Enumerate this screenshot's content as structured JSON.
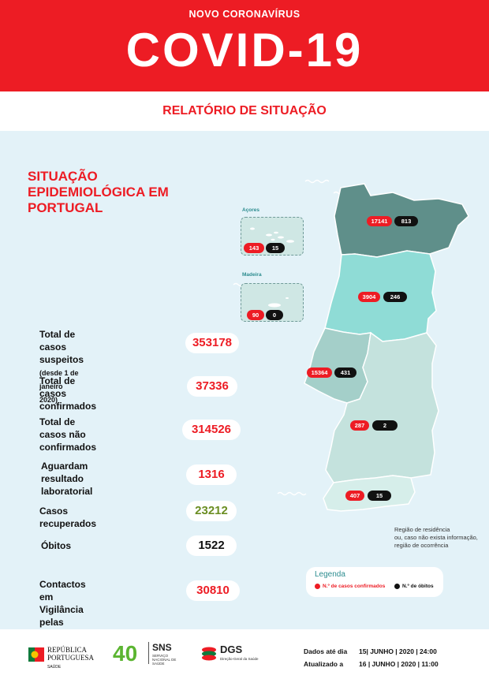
{
  "header": {
    "subtitle": "NOVO CORONAVÍRUS",
    "title": "COVID-19"
  },
  "report_title": "RELATÓRIO DE SITUAÇÃO",
  "situation_title_lines": [
    "SITUAÇÃO",
    "EPIDEMIOLÓGICA EM",
    "PORTUGAL"
  ],
  "stats": [
    {
      "label_lines": [
        "Total de casos",
        "suspeitos"
      ],
      "label_note": "(desde 1 de janeiro",
      "label_note2": "2020)",
      "value": "353178",
      "value_color": "#ed1c24"
    },
    {
      "label_lines": [
        "Total de casos",
        "confirmados"
      ],
      "value": "37336",
      "value_color": "#ed1c24"
    },
    {
      "label_lines": [
        "Total de casos não",
        "confirmados"
      ],
      "value": "314526",
      "value_color": "#ed1c24"
    },
    {
      "label_lines": [
        "Aguardam resultado",
        "laboratorial"
      ],
      "value": "1316",
      "value_color": "#ed1c24"
    },
    {
      "label_lines": [
        "Casos recuperados"
      ],
      "value": "23212",
      "value_color": "#6b8e23"
    },
    {
      "label_lines": [
        "Óbitos"
      ],
      "value": "1522",
      "value_color": "#111111"
    },
    {
      "label_lines": [
        "Contactos em Vigilância",
        "pelas Autoridades de Saúde"
      ],
      "value": "30810",
      "value_color": "#ed1c24"
    }
  ],
  "islands": [
    {
      "name": "Açores",
      "cases": "143",
      "deaths": "15"
    },
    {
      "name": "Madeira",
      "cases": "90",
      "deaths": "0"
    }
  ],
  "regions": [
    {
      "id": "norte",
      "cases": "17141",
      "deaths": "813",
      "color": "#5f8f8a"
    },
    {
      "id": "centro",
      "cases": "3904",
      "deaths": "246",
      "color": "#8fdcd6"
    },
    {
      "id": "lisboa",
      "cases": "15364",
      "deaths": "431",
      "color": "#a4cfc9"
    },
    {
      "id": "alentejo",
      "cases": "287",
      "deaths": "2",
      "color": "#c4e2dd"
    },
    {
      "id": "algarve",
      "cases": "407",
      "deaths": "15",
      "color": "#d6eeea"
    }
  ],
  "map_note_lines": [
    "Região de residência",
    "ou, caso não exista informação,",
    "região de ocorrência"
  ],
  "legend": {
    "title": "Legenda",
    "cases_label": "N.º de casos confirmados",
    "deaths_label": "N.º de óbitos"
  },
  "footer": {
    "republica_line1": "REPÚBLICA",
    "republica_line2": "PORTUGUESA",
    "republica_sub": "SAÚDE",
    "sns_years": "40",
    "sns_name": "SNS",
    "sns_sub": "SERVIÇO NACIONAL DE SAÚDE",
    "dgs_name": "DGS",
    "dgs_sub": "Direção-Geral da Saúde",
    "data_label": "Dados até dia",
    "data_value": "15| JUNHO | 2020 | 24:00",
    "updated_label": "Atualizado a",
    "updated_value": "16 | JUNHO | 2020 | 11:00"
  },
  "colors": {
    "accent": "#ed1c24",
    "panel": "#e3f2f8",
    "teal": "#2c8c8f"
  }
}
